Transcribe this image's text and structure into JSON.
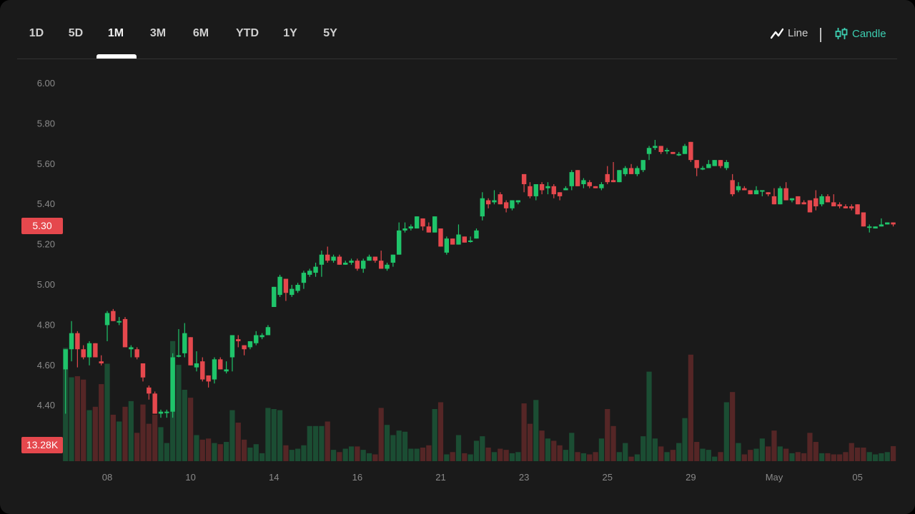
{
  "timeframe_tabs": [
    {
      "label": "1D",
      "active": false
    },
    {
      "label": "5D",
      "active": false
    },
    {
      "label": "1M",
      "active": true
    },
    {
      "label": "3M",
      "active": false
    },
    {
      "label": "6M",
      "active": false
    },
    {
      "label": "YTD",
      "active": false
    },
    {
      "label": "1Y",
      "active": false
    },
    {
      "label": "5Y",
      "active": false
    }
  ],
  "chart_modes": {
    "line_label": "Line",
    "candle_label": "Candle",
    "active": "Candle",
    "line_icon": "line-chart-icon",
    "candle_icon": "candlestick-icon"
  },
  "colors": {
    "up": "#1fc46a",
    "down": "#e5484d",
    "vol_up": "#1b4d33",
    "vol_down": "#552626",
    "accent": "#3ccdb0",
    "background": "#1a1a1a"
  },
  "badges": {
    "last_price": "5.30",
    "last_volume": "13.28K"
  },
  "chart_data": {
    "type": "candlestick",
    "ylim": [
      4.26,
      6.0
    ],
    "y_ticks": [
      "6.00",
      "5.80",
      "5.60",
      "5.40",
      "5.20",
      "5.00",
      "4.80",
      "4.60",
      "4.40"
    ],
    "x_ticks": [
      {
        "label": "08",
        "index": 7
      },
      {
        "label": "10",
        "index": 21
      },
      {
        "label": "14",
        "index": 35
      },
      {
        "label": "16",
        "index": 49
      },
      {
        "label": "21",
        "index": 63
      },
      {
        "label": "23",
        "index": 77
      },
      {
        "label": "25",
        "index": 91
      },
      {
        "label": "29",
        "index": 105
      },
      {
        "label": "May",
        "index": 119
      },
      {
        "label": "05",
        "index": 133
      }
    ],
    "volume_unit": "K",
    "ohlc": [
      [
        4.58,
        4.68,
        4.36,
        4.68
      ],
      [
        4.68,
        4.82,
        4.62,
        4.76
      ],
      [
        4.76,
        4.77,
        4.59,
        4.68
      ],
      [
        4.68,
        4.7,
        4.63,
        4.64
      ],
      [
        4.64,
        4.72,
        4.6,
        4.71
      ],
      [
        4.71,
        4.71,
        4.64,
        4.64
      ],
      [
        4.62,
        4.65,
        4.6,
        4.61
      ],
      [
        4.8,
        4.87,
        4.72,
        4.86
      ],
      [
        4.87,
        4.88,
        4.82,
        4.82
      ],
      [
        4.82,
        4.84,
        4.8,
        4.82
      ],
      [
        4.83,
        4.84,
        4.69,
        4.69
      ],
      [
        4.68,
        4.7,
        4.64,
        4.69
      ],
      [
        4.68,
        4.69,
        4.63,
        4.64
      ],
      [
        4.61,
        4.61,
        4.52,
        4.54
      ],
      [
        4.49,
        4.5,
        4.43,
        4.46
      ],
      [
        4.46,
        4.47,
        4.36,
        4.36
      ],
      [
        4.36,
        4.38,
        4.34,
        4.37
      ],
      [
        4.37,
        4.38,
        4.34,
        4.37
      ],
      [
        4.37,
        4.66,
        4.34,
        4.64
      ],
      [
        4.65,
        4.78,
        4.64,
        4.65
      ],
      [
        4.66,
        4.81,
        4.64,
        4.76
      ],
      [
        4.74,
        4.74,
        4.6,
        4.6
      ],
      [
        4.59,
        4.67,
        4.57,
        4.61
      ],
      [
        4.62,
        4.64,
        4.52,
        4.53
      ],
      [
        4.55,
        4.55,
        4.49,
        4.52
      ],
      [
        4.53,
        4.64,
        4.51,
        4.63
      ],
      [
        4.63,
        4.64,
        4.58,
        4.58
      ],
      [
        4.57,
        4.62,
        4.56,
        4.58
      ],
      [
        4.64,
        4.75,
        4.57,
        4.75
      ],
      [
        4.73,
        4.75,
        4.69,
        4.72
      ],
      [
        4.7,
        4.7,
        4.65,
        4.68
      ],
      [
        4.69,
        4.72,
        4.68,
        4.72
      ],
      [
        4.71,
        4.77,
        4.7,
        4.75
      ],
      [
        4.74,
        4.76,
        4.73,
        4.75
      ],
      [
        4.75,
        4.8,
        4.75,
        4.79
      ],
      [
        4.89,
        4.99,
        4.89,
        4.99
      ],
      [
        4.95,
        5.05,
        4.94,
        5.04
      ],
      [
        5.03,
        5.03,
        4.92,
        4.96
      ],
      [
        4.95,
        5.0,
        4.94,
        4.98
      ],
      [
        4.97,
        5.01,
        4.96,
        5.0
      ],
      [
        5.01,
        5.07,
        4.98,
        5.06
      ],
      [
        5.05,
        5.08,
        5.04,
        5.07
      ],
      [
        5.06,
        5.11,
        5.04,
        5.09
      ],
      [
        5.1,
        5.17,
        5.04,
        5.15
      ],
      [
        5.15,
        5.19,
        5.11,
        5.12
      ],
      [
        5.12,
        5.15,
        5.11,
        5.14
      ],
      [
        5.14,
        5.15,
        5.1,
        5.1
      ],
      [
        5.1,
        5.12,
        5.1,
        5.11
      ],
      [
        5.11,
        5.13,
        5.1,
        5.12
      ],
      [
        5.12,
        5.13,
        5.07,
        5.08
      ],
      [
        5.08,
        5.13,
        5.06,
        5.12
      ],
      [
        5.12,
        5.15,
        5.12,
        5.14
      ],
      [
        5.14,
        5.14,
        5.11,
        5.12
      ],
      [
        5.12,
        5.17,
        5.08,
        5.08
      ],
      [
        5.08,
        5.11,
        5.07,
        5.1
      ],
      [
        5.11,
        5.15,
        5.09,
        5.15
      ],
      [
        5.15,
        5.31,
        5.15,
        5.27
      ],
      [
        5.27,
        5.31,
        5.26,
        5.28
      ],
      [
        5.28,
        5.3,
        5.27,
        5.29
      ],
      [
        5.28,
        5.34,
        5.28,
        5.34
      ],
      [
        5.33,
        5.33,
        5.27,
        5.29
      ],
      [
        5.29,
        5.31,
        5.26,
        5.26
      ],
      [
        5.26,
        5.34,
        5.26,
        5.34
      ],
      [
        5.28,
        5.28,
        5.19,
        5.19
      ],
      [
        5.16,
        5.24,
        5.15,
        5.23
      ],
      [
        5.23,
        5.23,
        5.2,
        5.2
      ],
      [
        5.2,
        5.3,
        5.2,
        5.25
      ],
      [
        5.24,
        5.24,
        5.21,
        5.21
      ],
      [
        5.22,
        5.24,
        5.21,
        5.22
      ],
      [
        5.23,
        5.28,
        5.23,
        5.27
      ],
      [
        5.34,
        5.46,
        5.32,
        5.43
      ],
      [
        5.42,
        5.43,
        5.38,
        5.4
      ],
      [
        5.41,
        5.47,
        5.4,
        5.42
      ],
      [
        5.45,
        5.46,
        5.4,
        5.4
      ],
      [
        5.41,
        5.42,
        5.36,
        5.38
      ],
      [
        5.38,
        5.42,
        5.37,
        5.42
      ],
      [
        5.41,
        5.42,
        5.4,
        5.42
      ],
      [
        5.55,
        5.55,
        5.46,
        5.5
      ],
      [
        5.49,
        5.51,
        5.43,
        5.44
      ],
      [
        5.44,
        5.5,
        5.42,
        5.5
      ],
      [
        5.5,
        5.51,
        5.45,
        5.47
      ],
      [
        5.48,
        5.51,
        5.45,
        5.49
      ],
      [
        5.49,
        5.5,
        5.43,
        5.45
      ],
      [
        5.46,
        5.46,
        5.42,
        5.44
      ],
      [
        5.47,
        5.49,
        5.47,
        5.48
      ],
      [
        5.49,
        5.57,
        5.47,
        5.56
      ],
      [
        5.57,
        5.57,
        5.49,
        5.49
      ],
      [
        5.5,
        5.53,
        5.48,
        5.52
      ],
      [
        5.51,
        5.52,
        5.48,
        5.49
      ],
      [
        5.49,
        5.49,
        5.48,
        5.48
      ],
      [
        5.48,
        5.51,
        5.47,
        5.5
      ],
      [
        5.55,
        5.59,
        5.5,
        5.51
      ],
      [
        5.52,
        5.61,
        5.51,
        5.51
      ],
      [
        5.51,
        5.57,
        5.51,
        5.57
      ],
      [
        5.55,
        5.59,
        5.54,
        5.58
      ],
      [
        5.58,
        5.6,
        5.55,
        5.55
      ],
      [
        5.55,
        5.59,
        5.54,
        5.58
      ],
      [
        5.57,
        5.62,
        5.56,
        5.62
      ],
      [
        5.65,
        5.69,
        5.62,
        5.68
      ],
      [
        5.68,
        5.72,
        5.67,
        5.69
      ],
      [
        5.69,
        5.69,
        5.65,
        5.66
      ],
      [
        5.67,
        5.68,
        5.65,
        5.67
      ],
      [
        5.66,
        5.66,
        5.65,
        5.65
      ],
      [
        5.65,
        5.66,
        5.64,
        5.65
      ],
      [
        5.65,
        5.7,
        5.65,
        5.69
      ],
      [
        5.71,
        5.71,
        5.61,
        5.62
      ],
      [
        5.62,
        5.62,
        5.54,
        5.58
      ],
      [
        5.58,
        5.59,
        5.57,
        5.58
      ],
      [
        5.58,
        5.62,
        5.58,
        5.6
      ],
      [
        5.59,
        5.62,
        5.59,
        5.62
      ],
      [
        5.62,
        5.62,
        5.58,
        5.59
      ],
      [
        5.58,
        5.62,
        5.57,
        5.61
      ],
      [
        5.52,
        5.55,
        5.44,
        5.45
      ],
      [
        5.47,
        5.51,
        5.46,
        5.49
      ],
      [
        5.48,
        5.49,
        5.47,
        5.47
      ],
      [
        5.47,
        5.47,
        5.45,
        5.45
      ],
      [
        5.45,
        5.49,
        5.45,
        5.47
      ],
      [
        5.47,
        5.47,
        5.44,
        5.47
      ],
      [
        5.46,
        5.46,
        5.44,
        5.45
      ],
      [
        5.44,
        5.48,
        5.4,
        5.4
      ],
      [
        5.4,
        5.49,
        5.4,
        5.48
      ],
      [
        5.48,
        5.51,
        5.42,
        5.42
      ],
      [
        5.42,
        5.43,
        5.41,
        5.43
      ],
      [
        5.44,
        5.44,
        5.4,
        5.4
      ],
      [
        5.41,
        5.42,
        5.4,
        5.4
      ],
      [
        5.42,
        5.42,
        5.36,
        5.36
      ],
      [
        5.43,
        5.47,
        5.37,
        5.39
      ],
      [
        5.4,
        5.45,
        5.39,
        5.44
      ],
      [
        5.44,
        5.45,
        5.41,
        5.41
      ],
      [
        5.41,
        5.45,
        5.39,
        5.39
      ],
      [
        5.4,
        5.41,
        5.38,
        5.39
      ],
      [
        5.39,
        5.4,
        5.38,
        5.38
      ],
      [
        5.39,
        5.4,
        5.37,
        5.38
      ],
      [
        5.4,
        5.4,
        5.35,
        5.35
      ],
      [
        5.36,
        5.36,
        5.29,
        5.29
      ],
      [
        5.29,
        5.3,
        5.26,
        5.29
      ],
      [
        5.28,
        5.29,
        5.28,
        5.29
      ],
      [
        5.29,
        5.33,
        5.29,
        5.3
      ],
      [
        5.3,
        5.31,
        5.3,
        5.31
      ],
      [
        5.31,
        5.31,
        5.29,
        5.3
      ]
    ],
    "volume": [
      100,
      74,
      75,
      72,
      45,
      48,
      68,
      86,
      41,
      35,
      48,
      53,
      25,
      50,
      33,
      41,
      30,
      16,
      106,
      85,
      63,
      56,
      23,
      19,
      20,
      16,
      15,
      17,
      45,
      34,
      19,
      12,
      15,
      7,
      47,
      46,
      45,
      14,
      10,
      11,
      14,
      31,
      31,
      31,
      35,
      10,
      8,
      11,
      13,
      13,
      10,
      7,
      6,
      47,
      32,
      23,
      27,
      26,
      11,
      11,
      12,
      14,
      46,
      52,
      6,
      8,
      23,
      7,
      6,
      18,
      22,
      12,
      8,
      11,
      10,
      7,
      8,
      51,
      33,
      54,
      27,
      20,
      18,
      14,
      10,
      25,
      8,
      7,
      6,
      8,
      20,
      46,
      31,
      8,
      16,
      4,
      6,
      22,
      79,
      20,
      13,
      8,
      10,
      16,
      38,
      94,
      17,
      11,
      10,
      4,
      8,
      52,
      61,
      16,
      6,
      10,
      11,
      20,
      13,
      27,
      13,
      11,
      7,
      8,
      7,
      25,
      17,
      7,
      7,
      6,
      6,
      8,
      16,
      12,
      12,
      8,
      6,
      7,
      8,
      13.28
    ]
  }
}
